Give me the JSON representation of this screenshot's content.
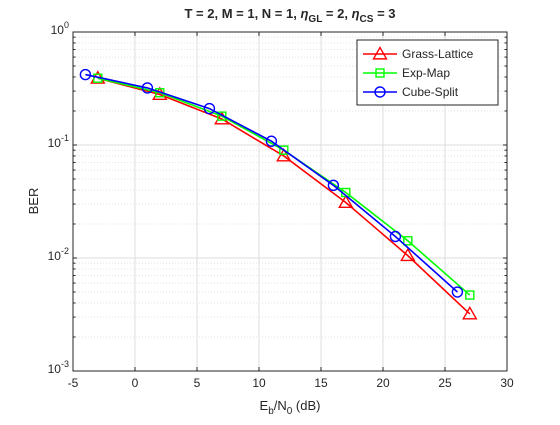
{
  "figure": {
    "title": {
      "prefix": "T = 2, M = 1, N = 1, ",
      "eta": "η",
      "gl_sub": "GL",
      "gl_val": " = 2, ",
      "cs_sub": "CS",
      "cs_val": " = 3"
    }
  },
  "chart_data": {
    "type": "line",
    "title": "T = 2, M = 1, N = 1, η_GL = 2, η_CS = 3",
    "xlabel": "E_b/N_0 (dB)",
    "xlabel_parts": {
      "e": "E",
      "b": "b",
      "slash_n": "/N",
      "zero": "0",
      "unit": " (dB)"
    },
    "ylabel": "BER",
    "xlim": [
      -5,
      30
    ],
    "ylim": [
      0.001,
      1
    ],
    "yscale": "log",
    "grid": true,
    "legend_position": "top-right",
    "x_ticks": [
      "-5",
      "0",
      "5",
      "10",
      "15",
      "20",
      "25",
      "30"
    ],
    "y_ticks": [
      {
        "base": "10",
        "exp": "0",
        "value": 1
      },
      {
        "base": "10",
        "exp": "-1",
        "value": 0.1
      },
      {
        "base": "10",
        "exp": "-2",
        "value": 0.01
      },
      {
        "base": "10",
        "exp": "-3",
        "value": 0.001
      }
    ],
    "series": [
      {
        "name": "Grass-Lattice",
        "color": "#ff0000",
        "marker": "triangle",
        "x": [
          -3,
          2,
          7,
          12,
          17,
          22,
          27
        ],
        "y": [
          0.39,
          0.28,
          0.17,
          0.08,
          0.031,
          0.0105,
          0.0032
        ]
      },
      {
        "name": "Exp-Map",
        "color": "#00ff00",
        "marker": "square",
        "x": [
          -3,
          2,
          7,
          12,
          17,
          22,
          27
        ],
        "y": [
          0.39,
          0.29,
          0.18,
          0.09,
          0.038,
          0.0142,
          0.0047
        ]
      },
      {
        "name": "Cube-Split",
        "color": "#0000ff",
        "marker": "circle",
        "x": [
          -4,
          1,
          6,
          11,
          16,
          21,
          26
        ],
        "y": [
          0.42,
          0.32,
          0.21,
          0.108,
          0.044,
          0.0155,
          0.005
        ]
      }
    ]
  }
}
